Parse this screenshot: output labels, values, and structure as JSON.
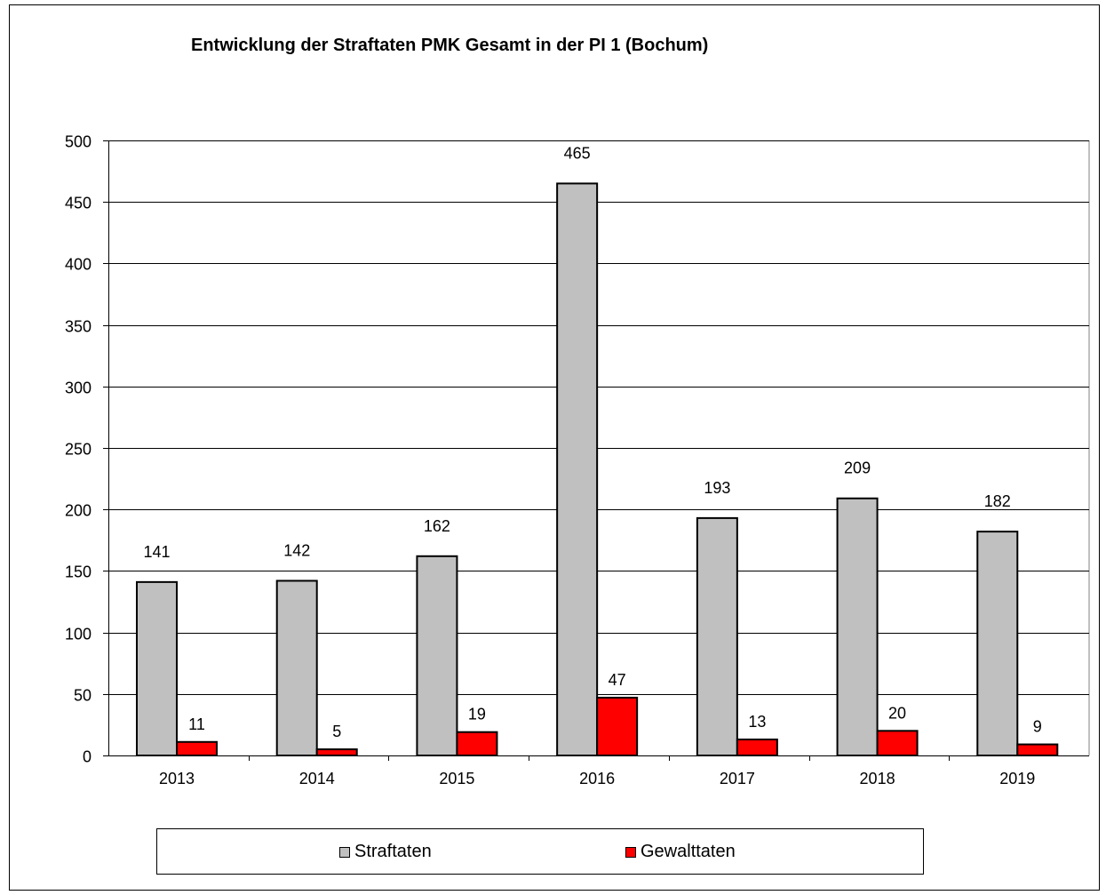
{
  "chart_data": {
    "type": "bar",
    "title": "Entwicklung der Straftaten PMK Gesamt in der PI 1 (Bochum)",
    "xlabel": "",
    "ylabel": "",
    "categories": [
      "2013",
      "2014",
      "2015",
      "2016",
      "2017",
      "2018",
      "2019"
    ],
    "series": [
      {
        "name": "Straftaten",
        "color": "#c0c0c0",
        "values": [
          141,
          142,
          162,
          465,
          193,
          209,
          182
        ]
      },
      {
        "name": "Gewalttaten",
        "color": "#ff0000",
        "values": [
          11,
          5,
          19,
          47,
          13,
          20,
          9
        ]
      }
    ],
    "ylim": [
      0,
      500
    ],
    "yticks": [
      0,
      50,
      100,
      150,
      200,
      250,
      300,
      350,
      400,
      450,
      500
    ],
    "grid": true,
    "legend_position": "bottom"
  }
}
